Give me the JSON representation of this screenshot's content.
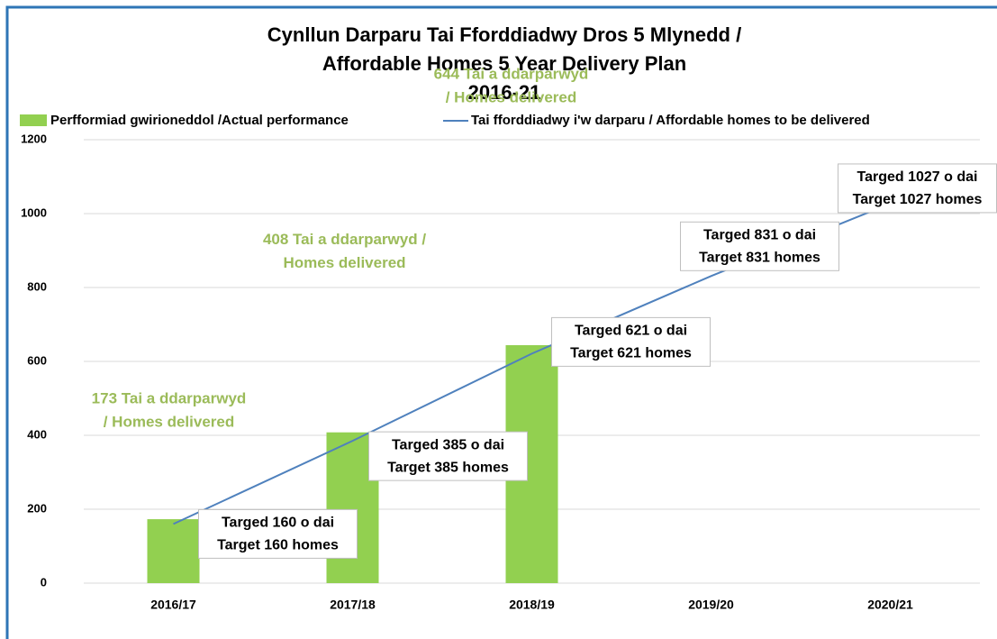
{
  "chart_data": {
    "type": "bar",
    "title": [
      "Cynllun Darparu Tai Fforddiadwy Dros 5 Mlynedd /",
      "Affordable Homes 5 Year Delivery Plan",
      "2016-21"
    ],
    "categories": [
      "2016/17",
      "2017/18",
      "2018/19",
      "2019/20",
      "2020/21"
    ],
    "series": [
      {
        "name": "Perfformiad gwirioneddol /Actual performance",
        "type": "bar",
        "color": "#92d050",
        "values": [
          173,
          408,
          644,
          null,
          null
        ],
        "value_labels": [
          [
            "173 Tai a ddarparwyd",
            "/ Homes delivered"
          ],
          [
            "408 Tai a ddarparwyd /",
            "Homes delivered"
          ],
          [
            "644 Tai a ddarparwyd",
            "/ Homes delivered"
          ],
          null,
          null
        ]
      },
      {
        "name": "Tai fforddiadwy i'w darparu / Affordable homes to be delivered",
        "type": "line",
        "color": "#4f81bd",
        "values": [
          160,
          385,
          621,
          831,
          1027
        ],
        "value_labels": [
          [
            "Targed 160 o dai",
            "Target 160 homes"
          ],
          [
            "Targed 385 o dai",
            "Target 385 homes"
          ],
          [
            "Targed 621 o dai",
            "Target 621 homes"
          ],
          [
            "Targed 831 o dai",
            "Target 831 homes"
          ],
          [
            "Targed 1027 o dai",
            "Target 1027 homes"
          ]
        ]
      }
    ],
    "ylim": [
      0,
      1200
    ],
    "yticks": [
      0,
      200,
      400,
      600,
      800,
      1000,
      1200
    ],
    "grid": true,
    "legend": "top"
  }
}
